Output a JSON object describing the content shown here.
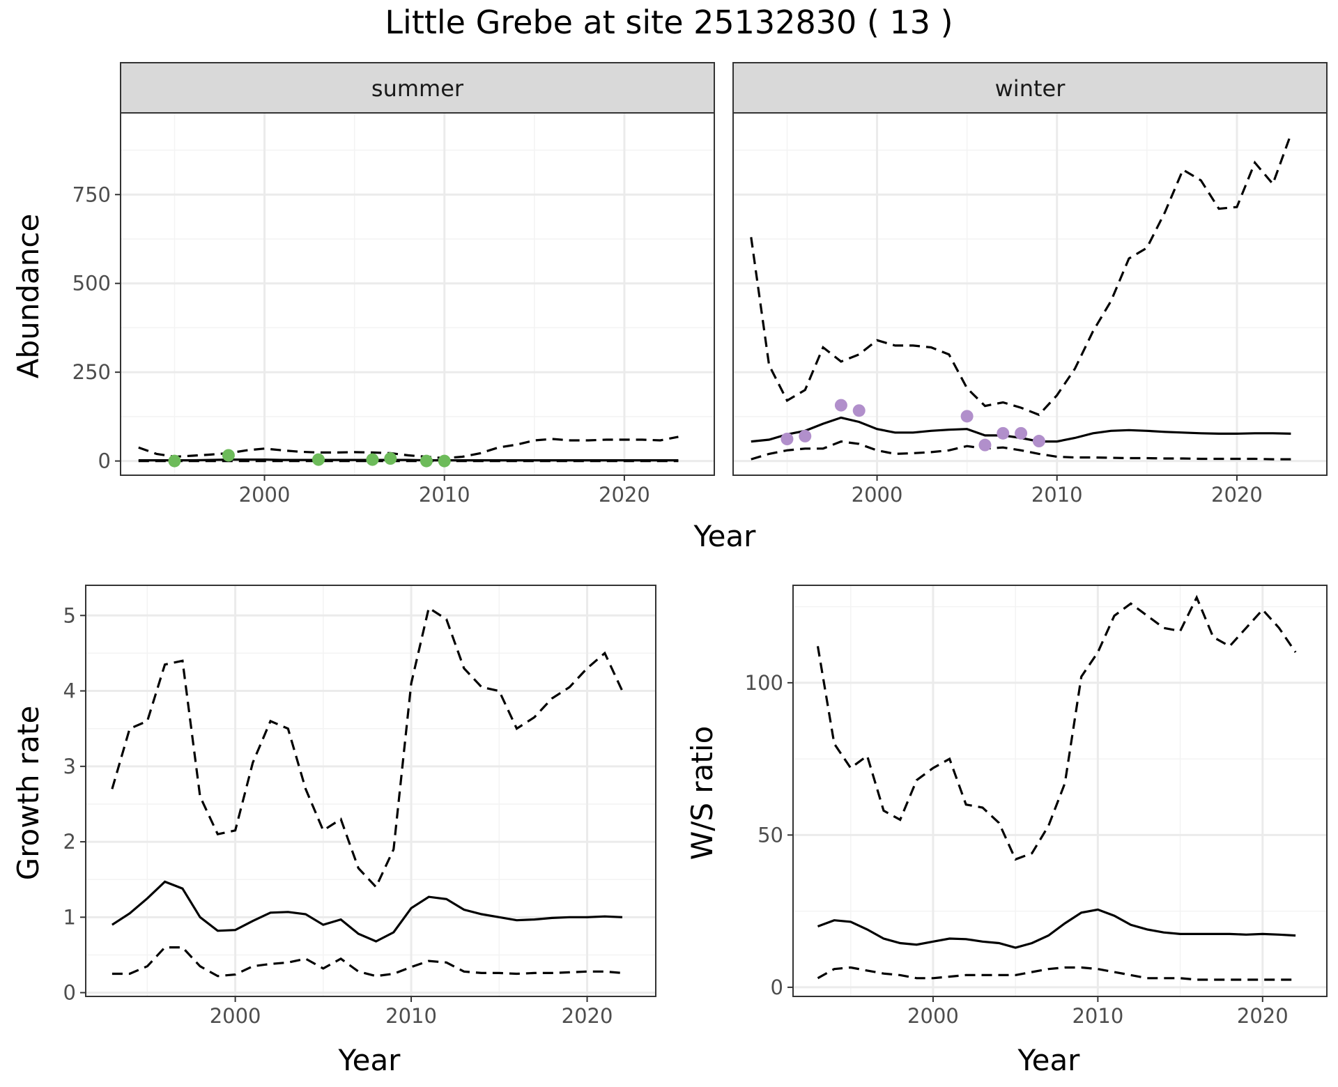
{
  "title": "Little Grebe at site 25132830 ( 13 )",
  "chart_data": [
    {
      "type": "line",
      "facets": [
        "summer",
        "winter"
      ],
      "xlabel": "Year",
      "ylabel": "Abundance",
      "xlim": [
        1992,
        2025
      ],
      "ylim": [
        -40,
        980
      ],
      "xticks": [
        2000,
        2010,
        2020
      ],
      "yticks": [
        0,
        250,
        500,
        750
      ],
      "grid": true,
      "point_colors": {
        "summer": "#6dbb5a",
        "winter": "#b18fcb"
      },
      "panels": {
        "summer": {
          "x": [
            1993,
            1994,
            1995,
            1996,
            1997,
            1998,
            1999,
            2000,
            2001,
            2002,
            2003,
            2004,
            2005,
            2006,
            2007,
            2008,
            2009,
            2010,
            2011,
            2012,
            2013,
            2014,
            2015,
            2016,
            2017,
            2018,
            2019,
            2020,
            2021,
            2022,
            2023
          ],
          "estimate": [
            2,
            2,
            2,
            2,
            3,
            4,
            4,
            4,
            3,
            3,
            3,
            3,
            3,
            3,
            3,
            3,
            2,
            2,
            2,
            2,
            2,
            2,
            2,
            2,
            2,
            2,
            2,
            2,
            2,
            2,
            2
          ],
          "upper": [
            38,
            20,
            12,
            15,
            18,
            22,
            30,
            35,
            30,
            26,
            24,
            24,
            25,
            24,
            22,
            16,
            12,
            8,
            12,
            22,
            38,
            46,
            58,
            62,
            58,
            58,
            60,
            60,
            60,
            58,
            68
          ],
          "lower": [
            0,
            0,
            0,
            0,
            0,
            0,
            0,
            0,
            0,
            0,
            0,
            0,
            0,
            0,
            0,
            0,
            0,
            0,
            0,
            0,
            0,
            0,
            0,
            0,
            0,
            0,
            0,
            0,
            0,
            0,
            0
          ],
          "observed_x": [
            1995,
            1998,
            2003,
            2006,
            2007,
            2009,
            2010
          ],
          "observed_y": [
            0,
            16,
            4,
            4,
            7,
            0,
            0
          ]
        },
        "winter": {
          "x": [
            1993,
            1994,
            1995,
            1996,
            1997,
            1998,
            1999,
            2000,
            2001,
            2002,
            2003,
            2004,
            2005,
            2006,
            2007,
            2008,
            2009,
            2010,
            2011,
            2012,
            2013,
            2014,
            2015,
            2016,
            2017,
            2018,
            2019,
            2020,
            2021,
            2022,
            2023
          ],
          "estimate": [
            55,
            60,
            75,
            85,
            105,
            122,
            110,
            90,
            80,
            80,
            85,
            88,
            90,
            72,
            72,
            65,
            55,
            55,
            65,
            78,
            85,
            87,
            85,
            82,
            80,
            78,
            77,
            77,
            78,
            78,
            77
          ],
          "upper": [
            630,
            270,
            170,
            200,
            320,
            280,
            300,
            340,
            325,
            325,
            320,
            300,
            205,
            155,
            165,
            150,
            130,
            185,
            260,
            365,
            450,
            570,
            600,
            700,
            820,
            790,
            710,
            715,
            840,
            780,
            920
          ],
          "lower": [
            5,
            20,
            30,
            35,
            35,
            55,
            48,
            30,
            20,
            22,
            25,
            30,
            42,
            35,
            38,
            30,
            20,
            12,
            10,
            10,
            9,
            8,
            8,
            7,
            7,
            6,
            6,
            6,
            6,
            5,
            5
          ],
          "observed_x": [
            1995,
            1996,
            1998,
            1999,
            2005,
            2006,
            2007,
            2008,
            2009
          ],
          "observed_y": [
            62,
            70,
            157,
            142,
            126,
            45,
            78,
            78,
            56
          ]
        }
      }
    },
    {
      "type": "line",
      "xlabel": "Year",
      "ylabel": "Growth rate",
      "xlim": [
        1991.5,
        2023.9
      ],
      "ylim": [
        -0.05,
        5.4
      ],
      "xticks": [
        2000,
        2010,
        2020
      ],
      "yticks": [
        0,
        1,
        2,
        3,
        4,
        5
      ],
      "grid": true,
      "x": [
        1993,
        1994,
        1995,
        1996,
        1997,
        1998,
        1999,
        2000,
        2001,
        2002,
        2003,
        2004,
        2005,
        2006,
        2007,
        2008,
        2009,
        2010,
        2011,
        2012,
        2013,
        2014,
        2015,
        2016,
        2017,
        2018,
        2019,
        2020,
        2021,
        2022
      ],
      "estimate": [
        0.9,
        1.05,
        1.25,
        1.47,
        1.38,
        1.0,
        0.82,
        0.83,
        0.95,
        1.06,
        1.07,
        1.04,
        0.9,
        0.97,
        0.78,
        0.68,
        0.8,
        1.12,
        1.27,
        1.24,
        1.1,
        1.04,
        1.0,
        0.96,
        0.97,
        0.99,
        1.0,
        1.0,
        1.01,
        1.0
      ],
      "upper": [
        2.7,
        3.5,
        3.6,
        4.35,
        4.4,
        2.6,
        2.1,
        2.15,
        3.05,
        3.6,
        3.5,
        2.7,
        2.15,
        2.3,
        1.65,
        1.4,
        1.9,
        4.1,
        5.1,
        4.95,
        4.3,
        4.05,
        4.0,
        3.5,
        3.65,
        3.9,
        4.05,
        4.3,
        4.5,
        4.0
      ],
      "lower": [
        0.25,
        0.25,
        0.35,
        0.6,
        0.6,
        0.35,
        0.22,
        0.24,
        0.35,
        0.38,
        0.4,
        0.45,
        0.32,
        0.45,
        0.28,
        0.22,
        0.25,
        0.34,
        0.42,
        0.4,
        0.28,
        0.26,
        0.26,
        0.25,
        0.26,
        0.26,
        0.27,
        0.28,
        0.28,
        0.26
      ]
    },
    {
      "type": "line",
      "xlabel": "Year",
      "ylabel": "W/S ratio",
      "xlim": [
        1991.5,
        2023.9
      ],
      "ylim": [
        -3,
        132
      ],
      "xticks": [
        2000,
        2010,
        2020
      ],
      "yticks": [
        0,
        50,
        100
      ],
      "grid": true,
      "x": [
        1993,
        1994,
        1995,
        1996,
        1997,
        1998,
        1999,
        2000,
        2001,
        2002,
        2003,
        2004,
        2005,
        2006,
        2007,
        2008,
        2009,
        2010,
        2011,
        2012,
        2013,
        2014,
        2015,
        2016,
        2017,
        2018,
        2019,
        2020,
        2021,
        2022
      ],
      "estimate": [
        20,
        22,
        21.5,
        19,
        16,
        14.5,
        14,
        15,
        16,
        15.8,
        15,
        14.5,
        13,
        14.5,
        17,
        21,
        24.5,
        25.5,
        23.5,
        20.5,
        19,
        18,
        17.5,
        17.5,
        17.5,
        17.5,
        17.3,
        17.5,
        17.3,
        17
      ],
      "upper": [
        112,
        80,
        72,
        76,
        58,
        55,
        68,
        72,
        75,
        60,
        59,
        54,
        42,
        44,
        53,
        67,
        102,
        110,
        122,
        126,
        122,
        118,
        117,
        128,
        115,
        112,
        118,
        124,
        118,
        110
      ],
      "lower": [
        3,
        6,
        6.5,
        5.5,
        4.5,
        4,
        3,
        3,
        3.5,
        4,
        4,
        4,
        4,
        5,
        6,
        6.5,
        6.5,
        6,
        5,
        4,
        3,
        3,
        3,
        2.5,
        2.5,
        2.5,
        2.5,
        2.5,
        2.5,
        2.5
      ]
    }
  ]
}
